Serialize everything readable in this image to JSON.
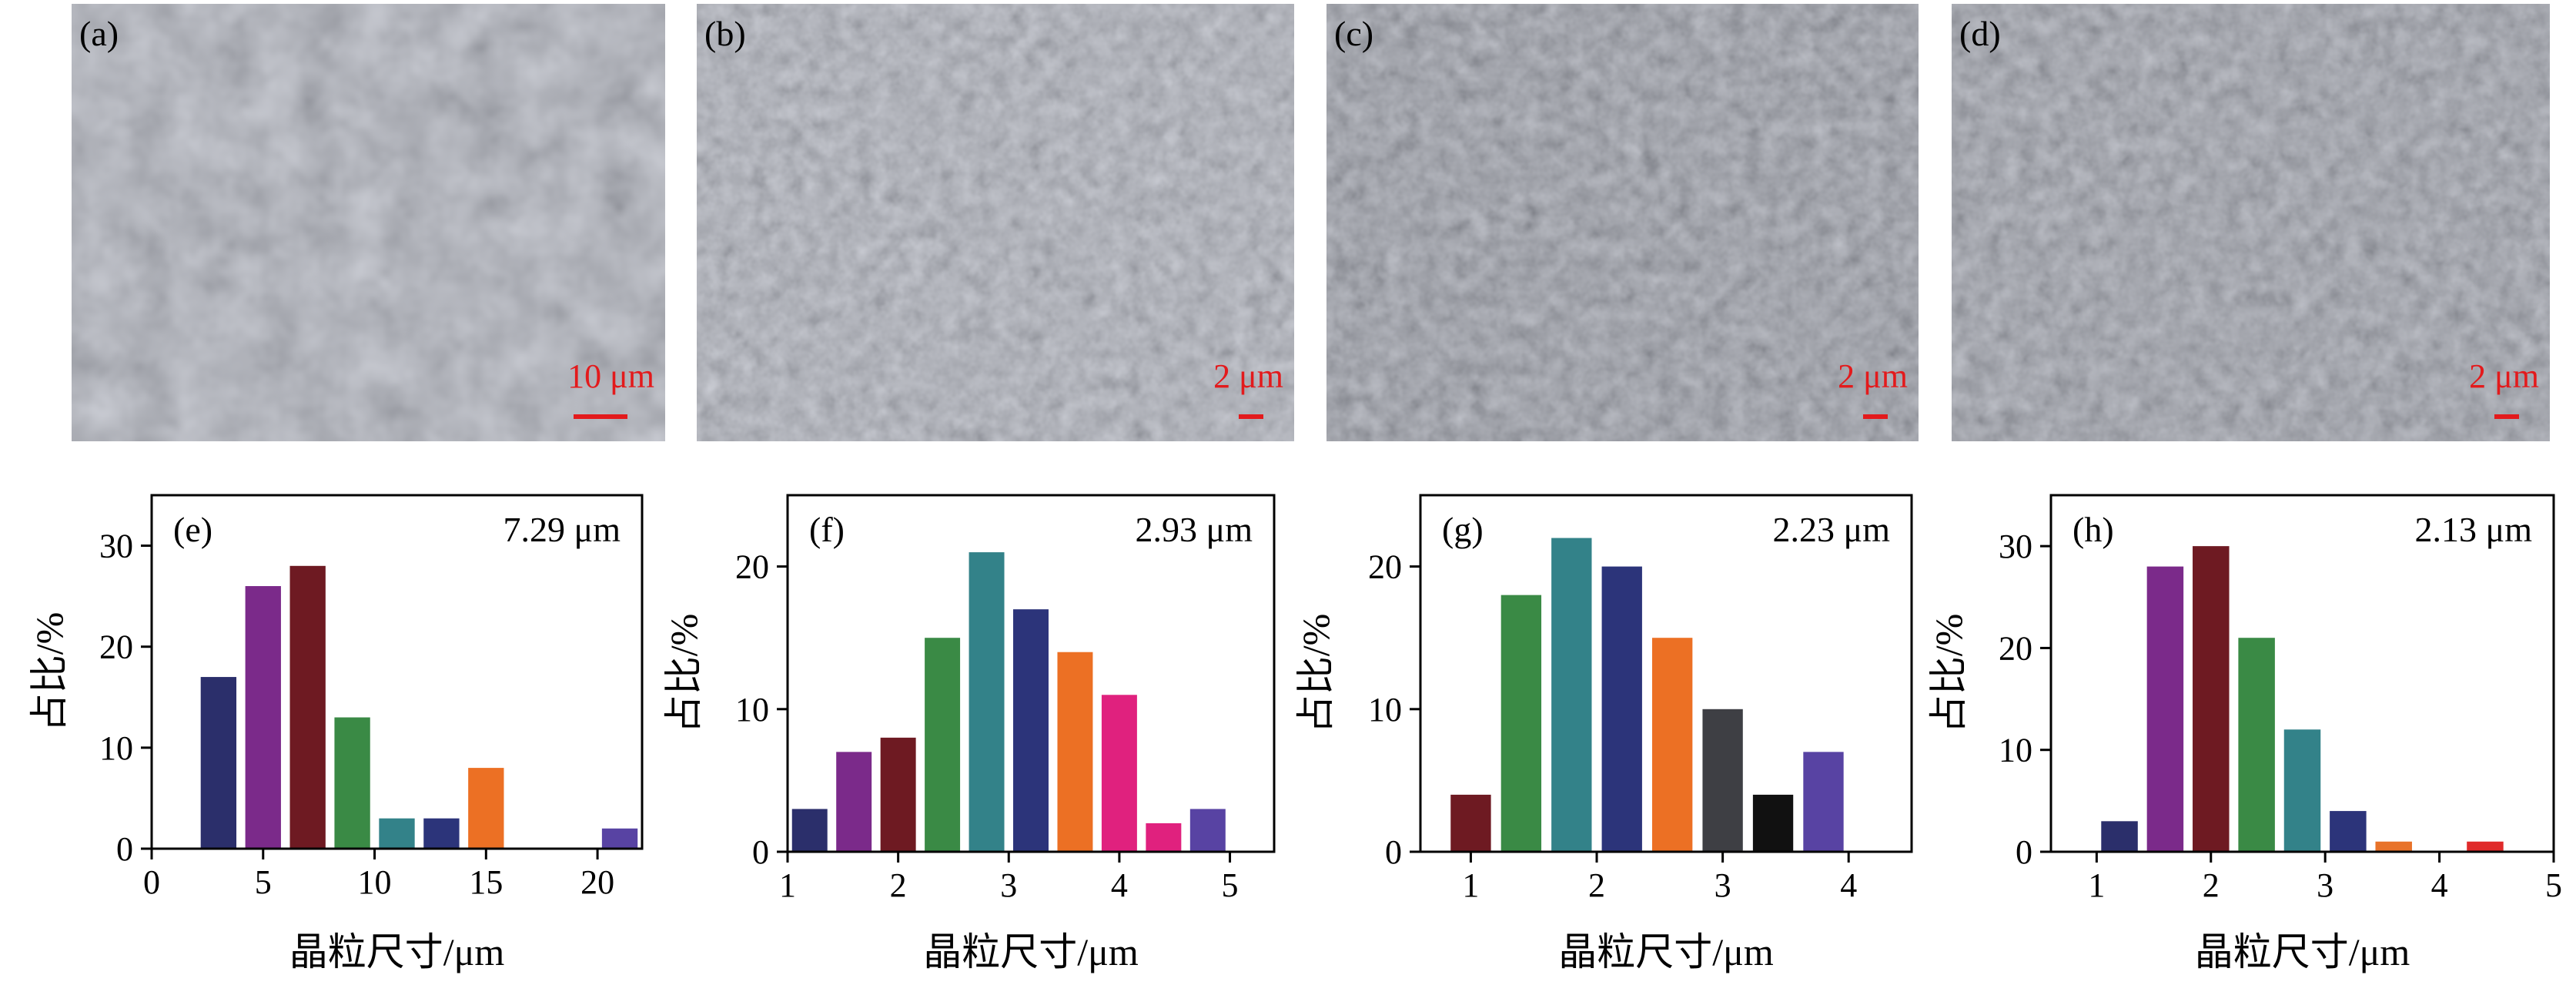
{
  "colors": {
    "scale_bar": "#e31a1c",
    "sem_panel_text": "#000000",
    "palette": [
      "#2b2f6b",
      "#7b2a8a",
      "#6e1a22",
      "#3a8a45",
      "#338289",
      "#2c347a",
      "#ec7024",
      "#e0217e",
      "#5843a3",
      "#3e3f44",
      "#111111",
      "#e8732a",
      "#e02a2a"
    ]
  },
  "sem": [
    {
      "label": "(a)",
      "scale": "10 μm",
      "tone": "#a7acb2"
    },
    {
      "label": "(b)",
      "scale": "2 μm",
      "tone": "#a3a8ae"
    },
    {
      "label": "(c)",
      "scale": "2 μm",
      "tone": "#858a90"
    },
    {
      "label": "(d)",
      "scale": "2 μm",
      "tone": "#8a8f95"
    }
  ],
  "chart_data": [
    {
      "type": "bar",
      "panel": "(e)",
      "annotation": "7.29 μm",
      "xlabel": "晶粒尺寸/μm",
      "ylabel": "占比/%",
      "xlim": [
        0,
        22
      ],
      "ylim": [
        0,
        35
      ],
      "xticks": [
        0,
        5,
        10,
        15,
        20
      ],
      "yticks": [
        0,
        10,
        20,
        30
      ],
      "bar_width": 1.6,
      "bars": [
        {
          "x": 3,
          "value": 17,
          "color": "#2b2f6b"
        },
        {
          "x": 5,
          "value": 26,
          "color": "#7b2a8a"
        },
        {
          "x": 7,
          "value": 28,
          "color": "#6e1a22"
        },
        {
          "x": 9,
          "value": 13,
          "color": "#3a8a45"
        },
        {
          "x": 11,
          "value": 3,
          "color": "#338289"
        },
        {
          "x": 13,
          "value": 3,
          "color": "#2c347a"
        },
        {
          "x": 15,
          "value": 8,
          "color": "#ec7024"
        },
        {
          "x": 21,
          "value": 2,
          "color": "#5843a3"
        }
      ]
    },
    {
      "type": "bar",
      "panel": "(f)",
      "annotation": "2.93 μm",
      "xlabel": "晶粒尺寸/μm",
      "ylabel": "占比/%",
      "xlim": [
        1,
        5.4
      ],
      "ylim": [
        0,
        25
      ],
      "xticks": [
        1,
        2,
        3,
        4,
        5
      ],
      "yticks": [
        0,
        10,
        20
      ],
      "bar_width": 0.32,
      "bars": [
        {
          "x": 1.2,
          "value": 3,
          "color": "#2b2f6b"
        },
        {
          "x": 1.6,
          "value": 7,
          "color": "#7b2a8a"
        },
        {
          "x": 2.0,
          "value": 8,
          "color": "#6e1a22"
        },
        {
          "x": 2.4,
          "value": 15,
          "color": "#3a8a45"
        },
        {
          "x": 2.8,
          "value": 21,
          "color": "#338289"
        },
        {
          "x": 3.2,
          "value": 17,
          "color": "#2c347a"
        },
        {
          "x": 3.6,
          "value": 14,
          "color": "#ec7024"
        },
        {
          "x": 4.0,
          "value": 11,
          "color": "#e0217e"
        },
        {
          "x": 4.4,
          "value": 2,
          "color": "#e0217e"
        },
        {
          "x": 4.8,
          "value": 3,
          "color": "#5843a3"
        }
      ]
    },
    {
      "type": "bar",
      "panel": "(g)",
      "annotation": "2.23 μm",
      "xlabel": "晶粒尺寸/μm",
      "ylabel": "占比/%",
      "xlim": [
        0.6,
        4.5
      ],
      "ylim": [
        0,
        25
      ],
      "xticks": [
        1,
        2,
        3,
        4
      ],
      "yticks": [
        0,
        10,
        20
      ],
      "bar_width": 0.32,
      "bars": [
        {
          "x": 1.0,
          "value": 4,
          "color": "#6e1a22"
        },
        {
          "x": 1.4,
          "value": 18,
          "color": "#3a8a45"
        },
        {
          "x": 1.8,
          "value": 22,
          "color": "#338289"
        },
        {
          "x": 2.2,
          "value": 20,
          "color": "#2c347a"
        },
        {
          "x": 2.6,
          "value": 15,
          "color": "#ec7024"
        },
        {
          "x": 3.0,
          "value": 10,
          "color": "#3e3f44"
        },
        {
          "x": 3.4,
          "value": 4,
          "color": "#111111"
        },
        {
          "x": 3.8,
          "value": 7,
          "color": "#5843a3"
        }
      ]
    },
    {
      "type": "bar",
      "panel": "(h)",
      "annotation": "2.13 μm",
      "xlabel": "晶粒尺寸/μm",
      "ylabel": "占比/%",
      "xlim": [
        0.6,
        5.0
      ],
      "ylim": [
        0,
        35
      ],
      "xticks": [
        1,
        2,
        3,
        4,
        5
      ],
      "yticks": [
        0,
        10,
        20,
        30
      ],
      "bar_width": 0.32,
      "bars": [
        {
          "x": 1.2,
          "value": 3,
          "color": "#2b2f6b"
        },
        {
          "x": 1.6,
          "value": 28,
          "color": "#7b2a8a"
        },
        {
          "x": 2.0,
          "value": 30,
          "color": "#6e1a22"
        },
        {
          "x": 2.4,
          "value": 21,
          "color": "#3a8a45"
        },
        {
          "x": 2.8,
          "value": 12,
          "color": "#338289"
        },
        {
          "x": 3.2,
          "value": 4,
          "color": "#2c347a"
        },
        {
          "x": 3.6,
          "value": 1,
          "color": "#e8732a"
        },
        {
          "x": 4.4,
          "value": 1,
          "color": "#e02a2a"
        }
      ]
    }
  ]
}
